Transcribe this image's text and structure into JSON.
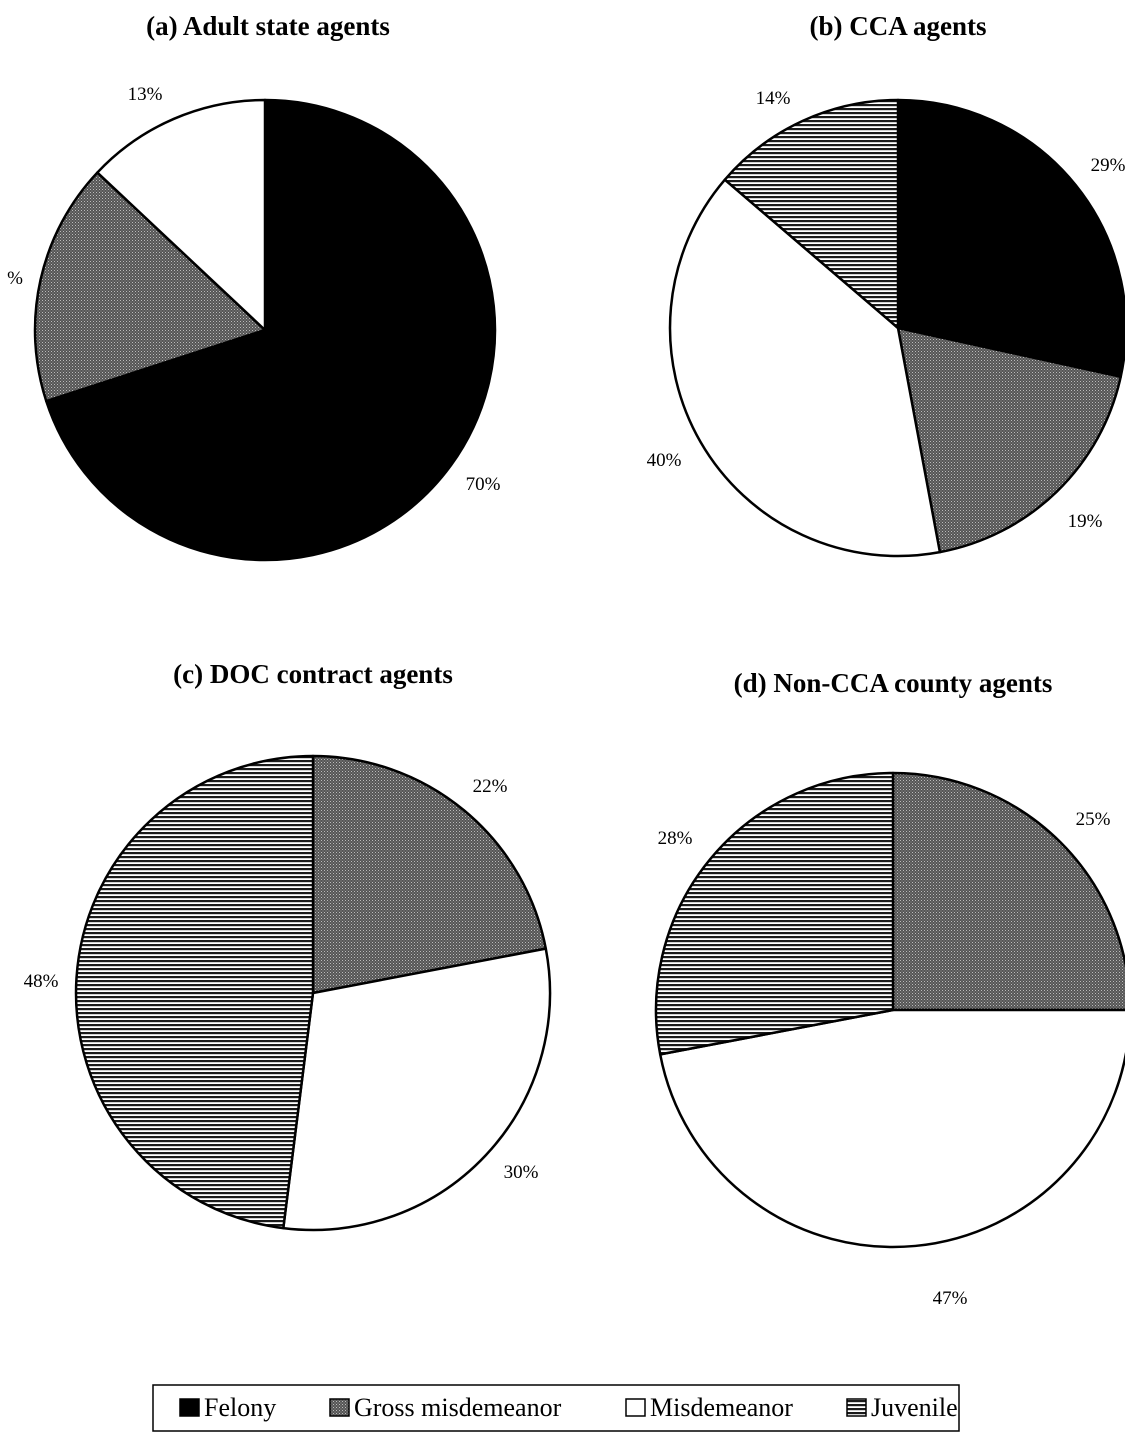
{
  "chart_data": [
    {
      "type": "pie",
      "title": "(a) Adult state agents",
      "slices": [
        {
          "category": "Felony",
          "value": 70,
          "label": "70%"
        },
        {
          "category": "Gross misdemeanor",
          "value": 17,
          "label": "%"
        },
        {
          "category": "Misdemeanor",
          "value": 13,
          "label": "13%"
        }
      ]
    },
    {
      "type": "pie",
      "title": "(b) CCA agents",
      "slices": [
        {
          "category": "Felony",
          "value": 29,
          "label": "29%"
        },
        {
          "category": "Gross misdemeanor",
          "value": 19,
          "label": "19%"
        },
        {
          "category": "Misdemeanor",
          "value": 40,
          "label": "40%"
        },
        {
          "category": "Juvenile",
          "value": 14,
          "label": "14%"
        }
      ]
    },
    {
      "type": "pie",
      "title": "(c) DOC contract agents",
      "slices": [
        {
          "category": "Gross misdemeanor",
          "value": 22,
          "label": "22%"
        },
        {
          "category": "Misdemeanor",
          "value": 30,
          "label": "30%"
        },
        {
          "category": "Juvenile",
          "value": 48,
          "label": "48%"
        }
      ]
    },
    {
      "type": "pie",
      "title": "(d) Non-CCA county agents",
      "slices": [
        {
          "category": "Gross misdemeanor",
          "value": 25,
          "label": "25%"
        },
        {
          "category": "Misdemeanor",
          "value": 47,
          "label": "47%"
        },
        {
          "category": "Juvenile",
          "value": 28,
          "label": "28%"
        }
      ]
    }
  ],
  "legend": {
    "placement": "bottom-center",
    "items": [
      {
        "category": "Felony",
        "label": "Felony",
        "fill": "solid-black"
      },
      {
        "category": "Gross misdemeanor",
        "label": "Gross misdemeanor",
        "fill": "dark-dotted"
      },
      {
        "category": "Misdemeanor",
        "label": "Misdemeanor",
        "fill": "white"
      },
      {
        "category": "Juvenile",
        "label": "Juvenile",
        "fill": "horizontal-lines"
      }
    ]
  }
}
